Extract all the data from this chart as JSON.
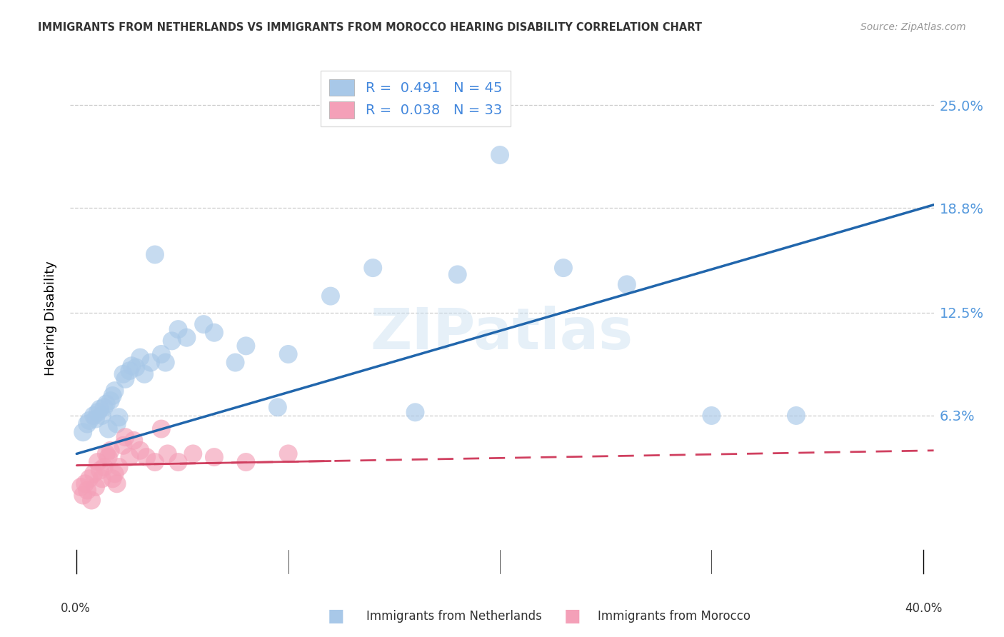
{
  "title": "IMMIGRANTS FROM NETHERLANDS VS IMMIGRANTS FROM MOROCCO HEARING DISABILITY CORRELATION CHART",
  "source": "Source: ZipAtlas.com",
  "ylabel": "Hearing Disability",
  "ytick_labels": [
    "25.0%",
    "18.8%",
    "12.5%",
    "6.3%"
  ],
  "ytick_values": [
    0.25,
    0.188,
    0.125,
    0.063
  ],
  "xlim": [
    -0.003,
    0.405
  ],
  "ylim": [
    -0.032,
    0.275
  ],
  "legend1_label": "R =  0.491   N = 45",
  "legend2_label": "R =  0.038   N = 33",
  "bottom_legend1": "Immigrants from Netherlands",
  "bottom_legend2": "Immigrants from Morocco",
  "color_nl": "#a8c8e8",
  "color_ma": "#f4a0b8",
  "color_nl_line": "#2166ac",
  "color_ma_line": "#d04060",
  "watermark": "ZIPatlas",
  "nl_x": [
    0.003,
    0.005,
    0.006,
    0.008,
    0.009,
    0.01,
    0.011,
    0.012,
    0.013,
    0.014,
    0.015,
    0.016,
    0.017,
    0.018,
    0.019,
    0.02,
    0.022,
    0.023,
    0.025,
    0.026,
    0.028,
    0.03,
    0.032,
    0.035,
    0.037,
    0.04,
    0.042,
    0.045,
    0.048,
    0.052,
    0.06,
    0.065,
    0.075,
    0.08,
    0.095,
    0.1,
    0.12,
    0.14,
    0.16,
    0.18,
    0.2,
    0.23,
    0.26,
    0.3,
    0.34
  ],
  "nl_y": [
    0.053,
    0.058,
    0.06,
    0.063,
    0.061,
    0.065,
    0.067,
    0.063,
    0.068,
    0.07,
    0.055,
    0.072,
    0.075,
    0.078,
    0.058,
    0.062,
    0.088,
    0.085,
    0.09,
    0.093,
    0.092,
    0.098,
    0.088,
    0.095,
    0.16,
    0.1,
    0.095,
    0.108,
    0.115,
    0.11,
    0.118,
    0.113,
    0.095,
    0.105,
    0.068,
    0.1,
    0.135,
    0.152,
    0.065,
    0.148,
    0.22,
    0.152,
    0.142,
    0.063,
    0.063
  ],
  "ma_x": [
    0.002,
    0.003,
    0.004,
    0.005,
    0.006,
    0.007,
    0.008,
    0.009,
    0.01,
    0.011,
    0.012,
    0.013,
    0.014,
    0.015,
    0.016,
    0.017,
    0.018,
    0.019,
    0.02,
    0.022,
    0.023,
    0.025,
    0.027,
    0.03,
    0.033,
    0.037,
    0.04,
    0.043,
    0.048,
    0.055,
    0.065,
    0.08,
    0.1
  ],
  "ma_y": [
    0.02,
    0.015,
    0.022,
    0.018,
    0.025,
    0.012,
    0.028,
    0.02,
    0.035,
    0.03,
    0.025,
    0.032,
    0.04,
    0.038,
    0.042,
    0.025,
    0.028,
    0.022,
    0.032,
    0.045,
    0.05,
    0.038,
    0.048,
    0.042,
    0.038,
    0.035,
    0.055,
    0.04,
    0.035,
    0.04,
    0.038,
    0.035,
    0.04
  ],
  "nl_line_x0": 0.0,
  "nl_line_y0": 0.04,
  "nl_line_x1": 0.405,
  "nl_line_y1": 0.19,
  "ma_line_x0": 0.0,
  "ma_line_y0": 0.033,
  "ma_line_x1": 0.405,
  "ma_line_y1": 0.042
}
